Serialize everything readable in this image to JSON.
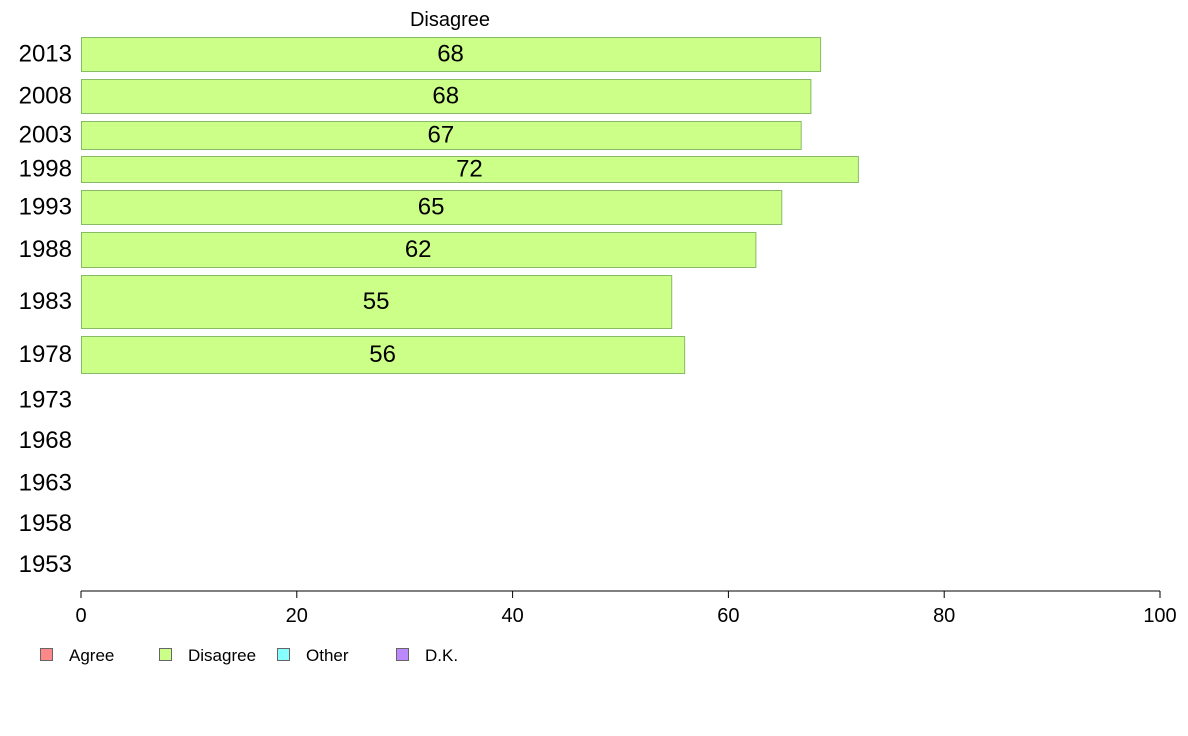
{
  "chart_data": {
    "type": "bar",
    "orientation": "horizontal",
    "title": "Disagree",
    "categories": [
      "2013",
      "2008",
      "2003",
      "1998",
      "1993",
      "1988",
      "1983",
      "1978",
      "1973",
      "1968",
      "1963",
      "1958",
      "1953"
    ],
    "series": [
      {
        "name": "Disagree",
        "color": "#ccff88",
        "values": [
          68.5,
          67.6,
          66.7,
          72.0,
          64.9,
          62.5,
          54.7,
          55.9,
          null,
          null,
          null,
          null,
          null
        ],
        "labels": [
          "68",
          "68",
          "67",
          "72",
          "65",
          "62",
          "55",
          "56",
          "",
          "",
          "",
          "",
          ""
        ]
      }
    ],
    "xlim": [
      0,
      100
    ],
    "xticks": [
      "0",
      "20",
      "40",
      "60",
      "80",
      "100"
    ],
    "grid": false,
    "legend": {
      "placement": "bottom-left",
      "items": [
        {
          "name": "Agree",
          "color": "#ff8888"
        },
        {
          "name": "Disagree",
          "color": "#ccff88"
        },
        {
          "name": "Other",
          "color": "#88ffff"
        },
        {
          "name": "D.K.",
          "color": "#bb88ff"
        }
      ]
    }
  }
}
